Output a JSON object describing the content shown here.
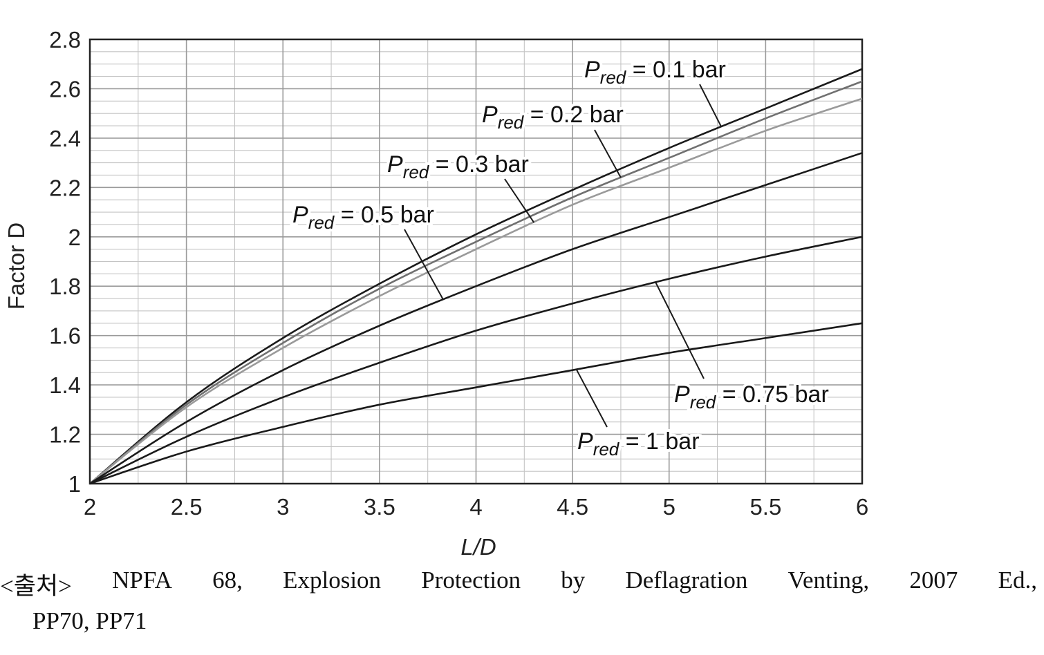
{
  "chart_data": {
    "type": "line",
    "title": "",
    "xlabel": "L/D",
    "ylabel": "Factor D",
    "xlim": [
      2,
      6
    ],
    "ylim": [
      1,
      2.8
    ],
    "xticks": [
      2,
      2.5,
      3,
      3.5,
      4,
      4.5,
      5,
      5.5,
      6
    ],
    "xtick_labels": [
      "2",
      "2.5",
      "3",
      "3.5",
      "4",
      "4.5",
      "5",
      "5.5",
      "6"
    ],
    "yticks": [
      1,
      1.2,
      1.4,
      1.6,
      1.8,
      2,
      2.2,
      2.4,
      2.6,
      2.8
    ],
    "ytick_labels": [
      "1",
      "1.2",
      "1.4",
      "1.6",
      "1.8",
      "2",
      "2.2",
      "2.4",
      "2.6",
      "2.8"
    ],
    "grid": true,
    "x": [
      2,
      2.5,
      3,
      3.5,
      4,
      4.5,
      5,
      5.5,
      6
    ],
    "series": [
      {
        "name": "Pred = 0.1 bar",
        "values": [
          1.0,
          1.33,
          1.59,
          1.81,
          2.01,
          2.19,
          2.36,
          2.52,
          2.68
        ],
        "color": "#1a1a1a"
      },
      {
        "name": "Pred = 0.2 bar",
        "values": [
          1.0,
          1.32,
          1.57,
          1.79,
          1.98,
          2.16,
          2.32,
          2.48,
          2.63
        ],
        "color": "#707070"
      },
      {
        "name": "Pred = 0.3 bar",
        "values": [
          1.0,
          1.31,
          1.55,
          1.76,
          1.95,
          2.13,
          2.28,
          2.43,
          2.56
        ],
        "color": "#9a9a9a"
      },
      {
        "name": "Pred = 0.5 bar",
        "values": [
          1.0,
          1.25,
          1.46,
          1.64,
          1.8,
          1.95,
          2.08,
          2.21,
          2.34
        ],
        "color": "#1a1a1a"
      },
      {
        "name": "Pred = 0.75 bar",
        "values": [
          1.0,
          1.19,
          1.35,
          1.49,
          1.62,
          1.73,
          1.83,
          1.92,
          2.0
        ],
        "color": "#1a1a1a"
      },
      {
        "name": "Pred = 1 bar",
        "values": [
          1.0,
          1.13,
          1.23,
          1.32,
          1.39,
          1.46,
          1.53,
          1.59,
          1.65
        ],
        "color": "#1a1a1a"
      }
    ],
    "annotations": [
      {
        "p": "P",
        "sub": "red",
        "rest": " = 0.1 bar",
        "series": 0,
        "leader_x": 5.27
      },
      {
        "p": "P",
        "sub": "red",
        "rest": " = 0.2 bar",
        "series": 1,
        "leader_x": 4.75
      },
      {
        "p": "P",
        "sub": "red",
        "rest": " = 0.3 bar",
        "series": 2,
        "leader_x": 4.3
      },
      {
        "p": "P",
        "sub": "red",
        "rest": " = 0.5 bar",
        "series": 3,
        "leader_x": 3.83
      },
      {
        "p": "P",
        "sub": "red",
        "rest": " = 0.75 bar",
        "series": 4,
        "leader_x": 4.93
      },
      {
        "p": "P",
        "sub": "red",
        "rest": " = 1 bar",
        "series": 5,
        "leader_x": 4.52
      }
    ]
  },
  "caption": {
    "line1": [
      "<출처>",
      "NPFA",
      "68,",
      "Explosion",
      "Protection",
      "by",
      "Deflagration",
      "Venting,",
      "2007",
      "Ed.,"
    ],
    "line2": "PP70, PP71"
  }
}
